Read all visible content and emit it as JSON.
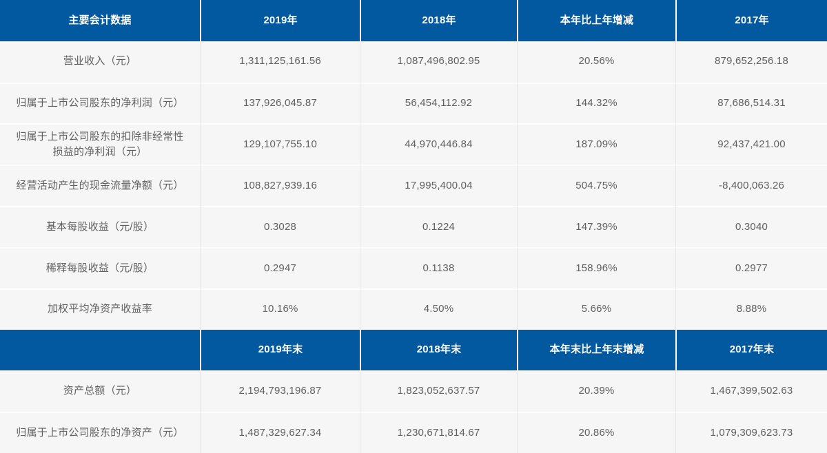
{
  "colors": {
    "header_bg": "#02599f",
    "header_text": "#ffffff",
    "row_bg": "#f6f6f6",
    "body_text": "#5f5f5f"
  },
  "table1": {
    "header": [
      "主要会计数据",
      "2019年",
      "2018年",
      "本年比上年增减",
      "2017年"
    ],
    "rows": [
      [
        "营业收入（元）",
        "1,311,125,161.56",
        "1,087,496,802.95",
        "20.56%",
        "879,652,256.18"
      ],
      [
        "归属于上市公司股东的净利润（元）",
        "137,926,045.87",
        "56,454,112.92",
        "144.32%",
        "87,686,514.31"
      ],
      [
        "归属于上市公司股东的扣除非经常性损益的净利润（元）",
        "129,107,755.10",
        "44,970,446.84",
        "187.09%",
        "92,437,421.00"
      ],
      [
        "经营活动产生的现金流量净额（元）",
        "108,827,939.16",
        "17,995,400.04",
        "504.75%",
        "-8,400,063.26"
      ],
      [
        "基本每股收益（元/股）",
        "0.3028",
        "0.1224",
        "147.39%",
        "0.3040"
      ],
      [
        "稀释每股收益（元/股）",
        "0.2947",
        "0.1138",
        "158.96%",
        "0.2977"
      ],
      [
        "加权平均净资产收益率",
        "10.16%",
        "4.50%",
        "5.66%",
        "8.88%"
      ]
    ]
  },
  "table2": {
    "header": [
      "",
      "2019年末",
      "2018年末",
      "本年末比上年末增减",
      "2017年末"
    ],
    "rows": [
      [
        "资产总额（元）",
        "2,194,793,196.87",
        "1,823,052,637.57",
        "20.39%",
        "1,467,399,502.63"
      ],
      [
        "归属于上市公司股东的净资产（元）",
        "1,487,329,627.34",
        "1,230,671,814.67",
        "20.86%",
        "1,079,309,623.73"
      ]
    ]
  }
}
